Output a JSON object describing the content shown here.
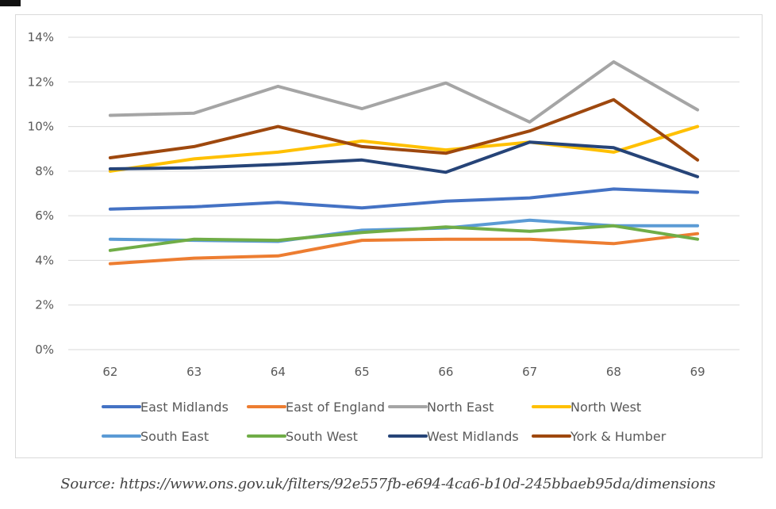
{
  "chart_data": {
    "type": "line",
    "title": "",
    "xlabel": "",
    "ylabel": "",
    "categories": [
      "62",
      "63",
      "64",
      "65",
      "66",
      "67",
      "68",
      "69"
    ],
    "ylim": [
      0,
      14
    ],
    "yticks": [
      0,
      2,
      4,
      6,
      8,
      10,
      12,
      14
    ],
    "ytick_labels": [
      "0%",
      "2%",
      "4%",
      "6%",
      "8%",
      "10%",
      "12%",
      "14%"
    ],
    "grid": true,
    "legend_position": "bottom",
    "series": [
      {
        "name": "East Midlands",
        "color": "#4472c4",
        "values": [
          6.3,
          6.4,
          6.6,
          6.35,
          6.65,
          6.8,
          7.2,
          7.05
        ]
      },
      {
        "name": "East of England",
        "color": "#ed7d31",
        "values": [
          3.85,
          4.1,
          4.2,
          4.9,
          4.95,
          4.95,
          4.75,
          5.2
        ]
      },
      {
        "name": "North East",
        "color": "#a5a5a5",
        "values": [
          10.5,
          10.6,
          11.8,
          10.8,
          11.95,
          10.2,
          12.9,
          10.75
        ]
      },
      {
        "name": "North West",
        "color": "#ffc000",
        "values": [
          8.0,
          8.55,
          8.85,
          9.35,
          8.95,
          9.3,
          8.85,
          10.0
        ]
      },
      {
        "name": "South East",
        "color": "#5b9bd5",
        "values": [
          4.95,
          4.9,
          4.85,
          5.35,
          5.45,
          5.8,
          5.55,
          5.55
        ]
      },
      {
        "name": "South West",
        "color": "#70ad47",
        "values": [
          4.45,
          4.95,
          4.9,
          5.25,
          5.5,
          5.3,
          5.55,
          4.95
        ]
      },
      {
        "name": "West Midlands",
        "color": "#264478",
        "values": [
          8.1,
          8.15,
          8.3,
          8.5,
          7.95,
          9.3,
          9.05,
          7.75
        ]
      },
      {
        "name": "York & Humber",
        "color": "#9e480e",
        "values": [
          8.6,
          9.1,
          10.0,
          9.1,
          8.8,
          9.8,
          11.2,
          8.5
        ]
      }
    ]
  },
  "source_text": "Source: https://www.ons.gov.uk/filters/92e557fb-e694-4ca6-b10d-245bbaeb95da/dimensions"
}
